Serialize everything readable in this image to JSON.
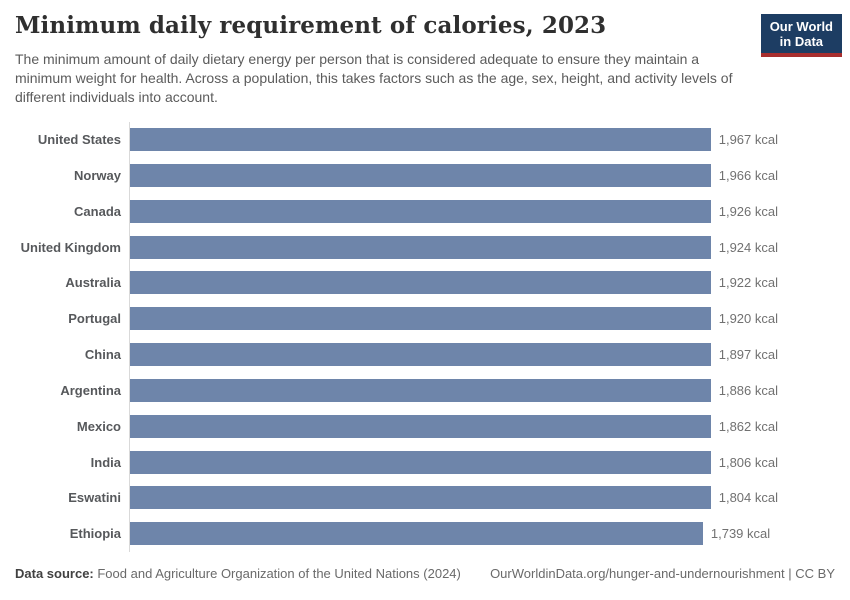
{
  "header": {
    "title": "Minimum daily requirement of calories, 2023",
    "subtitle": "The minimum amount of daily dietary energy per person that is considered adequate to ensure they maintain a minimum weight for health. Across a population, this takes factors such as the age, sex, height, and activity levels of different individuals into account.",
    "logo": {
      "line1": "Our World",
      "line2": "in Data",
      "bg_color": "#1d3d63",
      "accent_color": "#a82e2e"
    }
  },
  "chart_data": {
    "type": "bar",
    "orientation": "horizontal",
    "title": "Minimum daily requirement of calories, 2023",
    "unit": "kcal",
    "xlim": [
      0,
      1967
    ],
    "grid": false,
    "legend": "none",
    "bar_color": "#6e85aa",
    "categories": [
      "United States",
      "Norway",
      "Canada",
      "United Kingdom",
      "Australia",
      "Portugal",
      "China",
      "Argentina",
      "Mexico",
      "India",
      "Eswatini",
      "Ethiopia"
    ],
    "values": [
      1967,
      1966,
      1926,
      1924,
      1922,
      1920,
      1897,
      1886,
      1862,
      1806,
      1804,
      1739
    ],
    "value_labels": [
      "1,967 kcal",
      "1,966 kcal",
      "1,926 kcal",
      "1,924 kcal",
      "1,922 kcal",
      "1,920 kcal",
      "1,897 kcal",
      "1,886 kcal",
      "1,862 kcal",
      "1,806 kcal",
      "1,804 kcal",
      "1,739 kcal"
    ]
  },
  "footer": {
    "source_label": "Data source:",
    "source_text": " Food and Agriculture Organization of the United Nations (2024)",
    "link_text": "OurWorldinData.org/hunger-and-undernourishment",
    "separator": " | ",
    "license_text": "CC BY"
  }
}
